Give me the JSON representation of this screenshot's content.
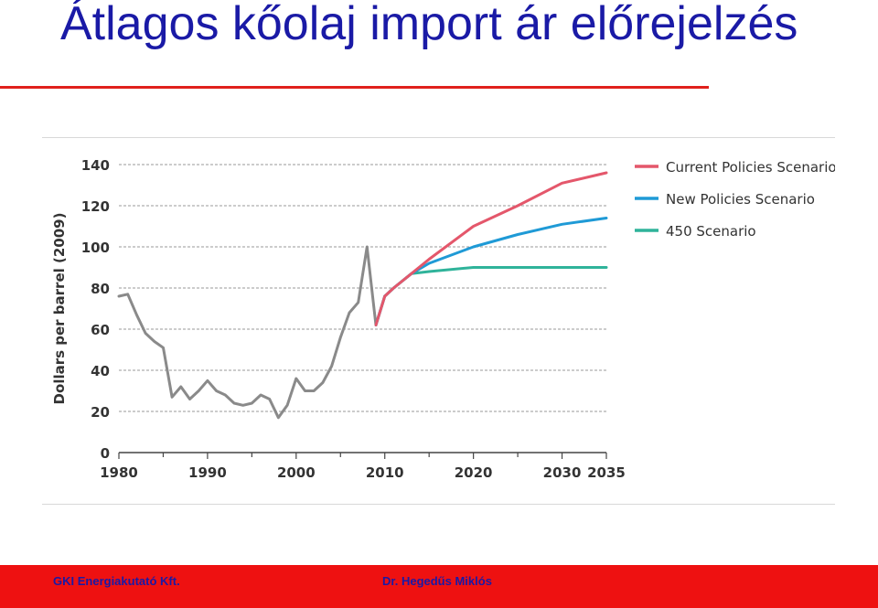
{
  "slide": {
    "title": "Átlagos kőolaj import ár előrejelzés",
    "footer_left": "GKI Energiakutató Kft.",
    "footer_right": "Dr. Hegedűs Miklós"
  },
  "colors": {
    "title": "#1a1aa6",
    "rule": "#e0201c",
    "footer_bg": "#ee1111",
    "historical": "#8a8a8a",
    "current": "#e4576b",
    "new": "#1f9ad6",
    "s450": "#2fb39a"
  },
  "chart_data": {
    "type": "line",
    "title": "",
    "xlabel": "",
    "ylabel": "Dollars per barrel (2009)",
    "xlim": [
      1980,
      2035
    ],
    "ylim": [
      0,
      140
    ],
    "x_ticks": [
      "1980",
      "1990",
      "2000",
      "2010",
      "2020",
      "2030",
      "2035"
    ],
    "y_ticks": [
      "0",
      "20",
      "40",
      "60",
      "80",
      "100",
      "120",
      "140"
    ],
    "grid": "horizontal dashed",
    "legend_position": "top-right",
    "series": [
      {
        "name": "",
        "color_key": "historical",
        "x": [
          1980,
          1981,
          1982,
          1983,
          1984,
          1985,
          1986,
          1987,
          1988,
          1989,
          1990,
          1991,
          1992,
          1993,
          1994,
          1995,
          1996,
          1997,
          1998,
          1999,
          2000,
          2001,
          2002,
          2003,
          2004,
          2005,
          2006,
          2007,
          2008,
          2009
        ],
        "y": [
          76,
          77,
          67,
          58,
          54,
          51,
          27,
          32,
          26,
          30,
          35,
          30,
          28,
          24,
          23,
          24,
          28,
          26,
          17,
          23,
          36,
          30,
          30,
          34,
          42,
          56,
          68,
          73,
          100,
          62
        ]
      },
      {
        "name": "Current Policies Scenario",
        "color_key": "current",
        "x": [
          2009,
          2010,
          2011,
          2013,
          2015,
          2020,
          2025,
          2030,
          2035
        ],
        "y": [
          62,
          76,
          80,
          87,
          94,
          110,
          120,
          131,
          136
        ]
      },
      {
        "name": "New Policies Scenario",
        "color_key": "new",
        "x": [
          2009,
          2010,
          2011,
          2013,
          2015,
          2020,
          2025,
          2030,
          2035
        ],
        "y": [
          62,
          76,
          80,
          87,
          92,
          100,
          106,
          111,
          114
        ]
      },
      {
        "name": "450 Scenario",
        "color_key": "s450",
        "x": [
          2009,
          2010,
          2011,
          2013,
          2015,
          2020,
          2025,
          2030,
          2035
        ],
        "y": [
          62,
          76,
          80,
          87,
          88,
          90,
          90,
          90,
          90
        ]
      }
    ]
  }
}
